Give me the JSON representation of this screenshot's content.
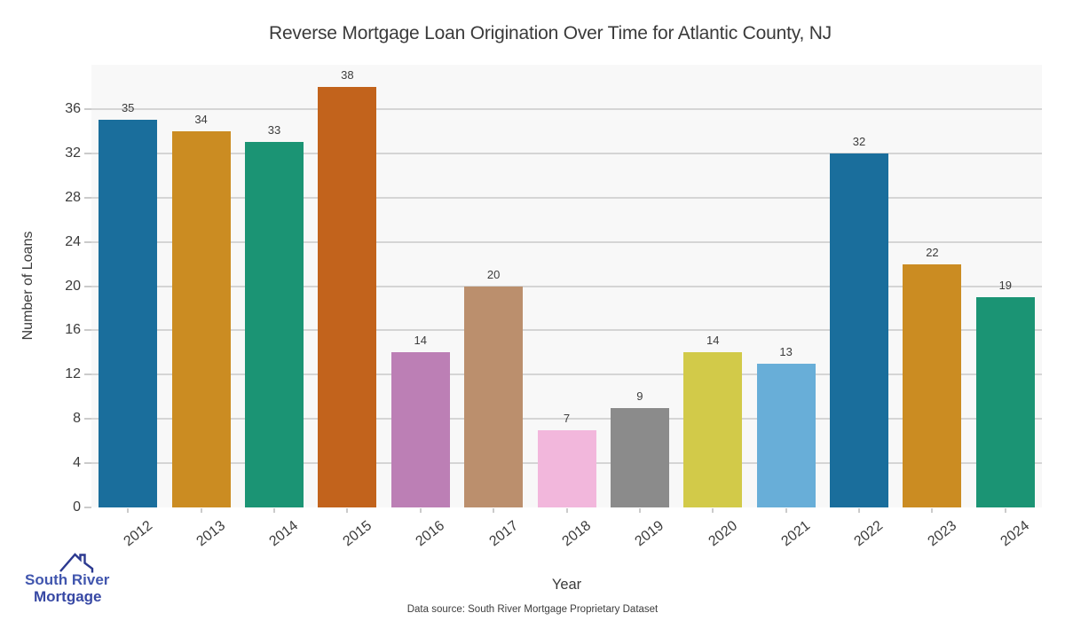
{
  "chart_data": {
    "type": "bar",
    "title": "Reverse Mortgage Loan Origination Over Time for Atlantic County, NJ",
    "xlabel": "Year",
    "ylabel": "Number of Loans",
    "categories": [
      "2012",
      "2013",
      "2014",
      "2015",
      "2016",
      "2017",
      "2018",
      "2019",
      "2020",
      "2021",
      "2022",
      "2023",
      "2024"
    ],
    "values": [
      35,
      34,
      33,
      38,
      14,
      20,
      7,
      9,
      14,
      13,
      32,
      22,
      19
    ],
    "ylim": [
      0,
      40
    ],
    "yticks": [
      0,
      4,
      8,
      12,
      16,
      20,
      24,
      28,
      32,
      36
    ],
    "grid": "horizontal",
    "legend": "none",
    "value_labels": true,
    "bar_colors": [
      "#1a6e9c",
      "#cb8c22",
      "#1b9474",
      "#c2631c",
      "#bc7fb5",
      "#bb8f6d",
      "#f2b7dc",
      "#8b8b8b",
      "#d2ca49",
      "#68aed8",
      "#1a6e9c",
      "#cb8c22",
      "#1b9474"
    ]
  },
  "footer": {
    "text": "Data source: South River Mortgage Proprietary Dataset"
  },
  "logo": {
    "line1": "South River",
    "line2": "Mortgage",
    "icon": "house-roof-icon"
  },
  "colors": {
    "plot_background": "#f8f8f8",
    "gridline": "#d5d5d5",
    "tick_mark": "#cbcbcb",
    "title_text": "#3a3a3a",
    "tick_text": "#3c3c3c",
    "logo_line1": "#4156ae",
    "logo_line2": "#3748a4",
    "logo_roof": "#2b3990"
  }
}
